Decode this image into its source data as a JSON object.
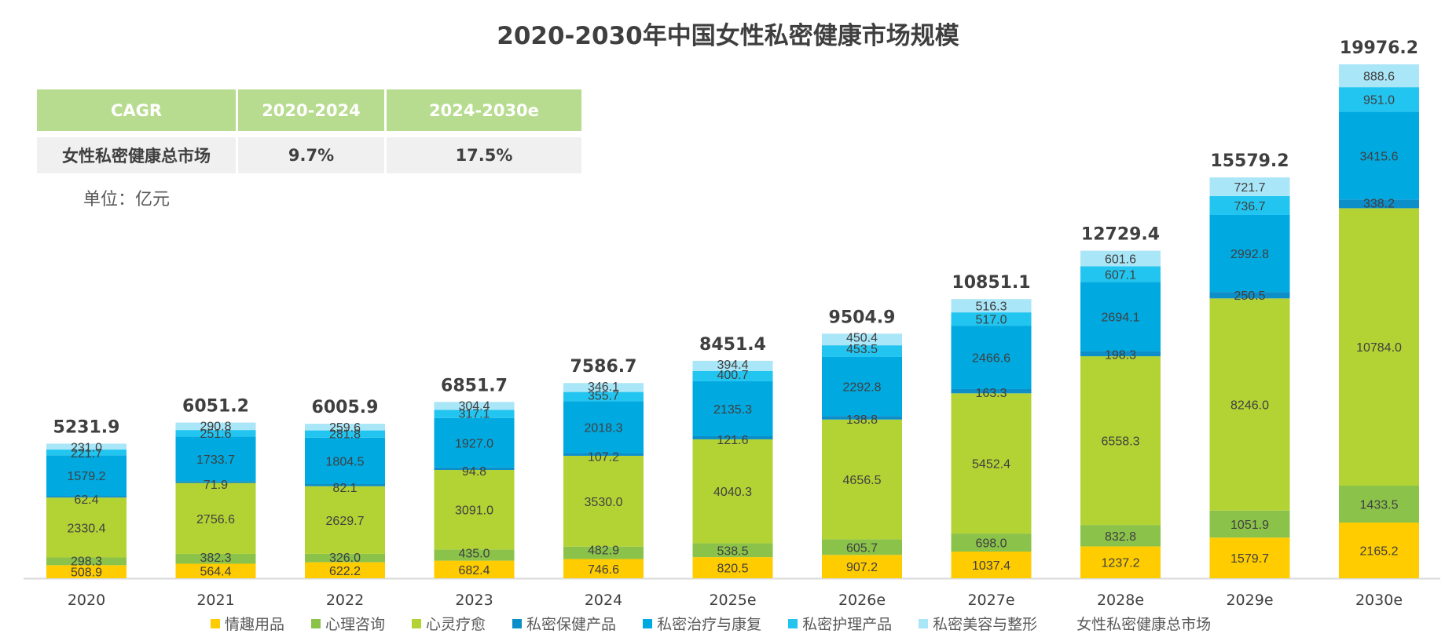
{
  "chart_data": {
    "type": "bar",
    "stacked": true,
    "title": "2020-2030年中国女性私密健康市场规模",
    "unit": "单位：亿元",
    "xlabel": "",
    "ylabel": "",
    "categories": [
      "2020",
      "2021",
      "2022",
      "2023",
      "2024",
      "2025e",
      "2026e",
      "2027e",
      "2028e",
      "2029e",
      "2030e"
    ],
    "series": [
      {
        "name": "情趣用品",
        "color": "#ffcc00",
        "values": [
          508.9,
          564.4,
          622.2,
          682.4,
          746.6,
          820.5,
          907.2,
          1037.4,
          1237.2,
          1579.7,
          2165.2
        ]
      },
      {
        "name": "心理咨询",
        "color": "#8bc34a",
        "values": [
          298.3,
          382.3,
          326.0,
          435.0,
          482.9,
          538.5,
          605.7,
          698.0,
          832.8,
          1051.9,
          1433.5
        ]
      },
      {
        "name": "心灵疗愈",
        "color": "#b3d334",
        "values": [
          2330.4,
          2756.6,
          2629.7,
          3091.0,
          3530.0,
          4040.3,
          4656.5,
          5452.4,
          6558.3,
          8246.0,
          10784.0
        ]
      },
      {
        "name": "私密保健产品",
        "color": "#0c8ec8",
        "values": [
          62.4,
          71.9,
          82.1,
          94.8,
          107.2,
          121.6,
          138.8,
          163.3,
          198.3,
          250.5,
          338.2
        ]
      },
      {
        "name": "私密治疗与康复",
        "color": "#00a9e0",
        "values": [
          1579.2,
          1733.7,
          1804.5,
          1927.0,
          2018.3,
          2135.3,
          2292.8,
          2466.6,
          2694.1,
          2992.8,
          3415.6
        ]
      },
      {
        "name": "私密护理产品",
        "color": "#22c5f0",
        "values": [
          221.7,
          251.6,
          281.8,
          317.1,
          355.7,
          400.7,
          453.5,
          517.0,
          607.1,
          736.7,
          951.0
        ]
      },
      {
        "name": "私密美容与整形",
        "color": "#a9e6f7",
        "values": [
          231.0,
          290.8,
          259.6,
          304.4,
          346.1,
          394.4,
          450.4,
          516.3,
          601.6,
          721.7,
          888.6
        ]
      }
    ],
    "totals_name": "女性私密健康总市场",
    "totals": [
      5231.9,
      6051.2,
      6005.9,
      6851.7,
      7586.7,
      8451.4,
      9504.9,
      10851.1,
      12729.4,
      15579.2,
      19976.2
    ],
    "ylim": [
      0,
      20000
    ],
    "grid": false,
    "legend_position": "bottom"
  },
  "cagr_table": {
    "headers": [
      "CAGR",
      "2020-2024",
      "2024-2030e"
    ],
    "row_label": "女性私密健康总市场",
    "values": [
      "9.7%",
      "17.5%"
    ]
  },
  "colors": {
    "header_green": "#b8dc8f",
    "row_gray": "#f0f0f0",
    "axis": "#d9d9d9",
    "text_dark": "#3f3f3f"
  }
}
